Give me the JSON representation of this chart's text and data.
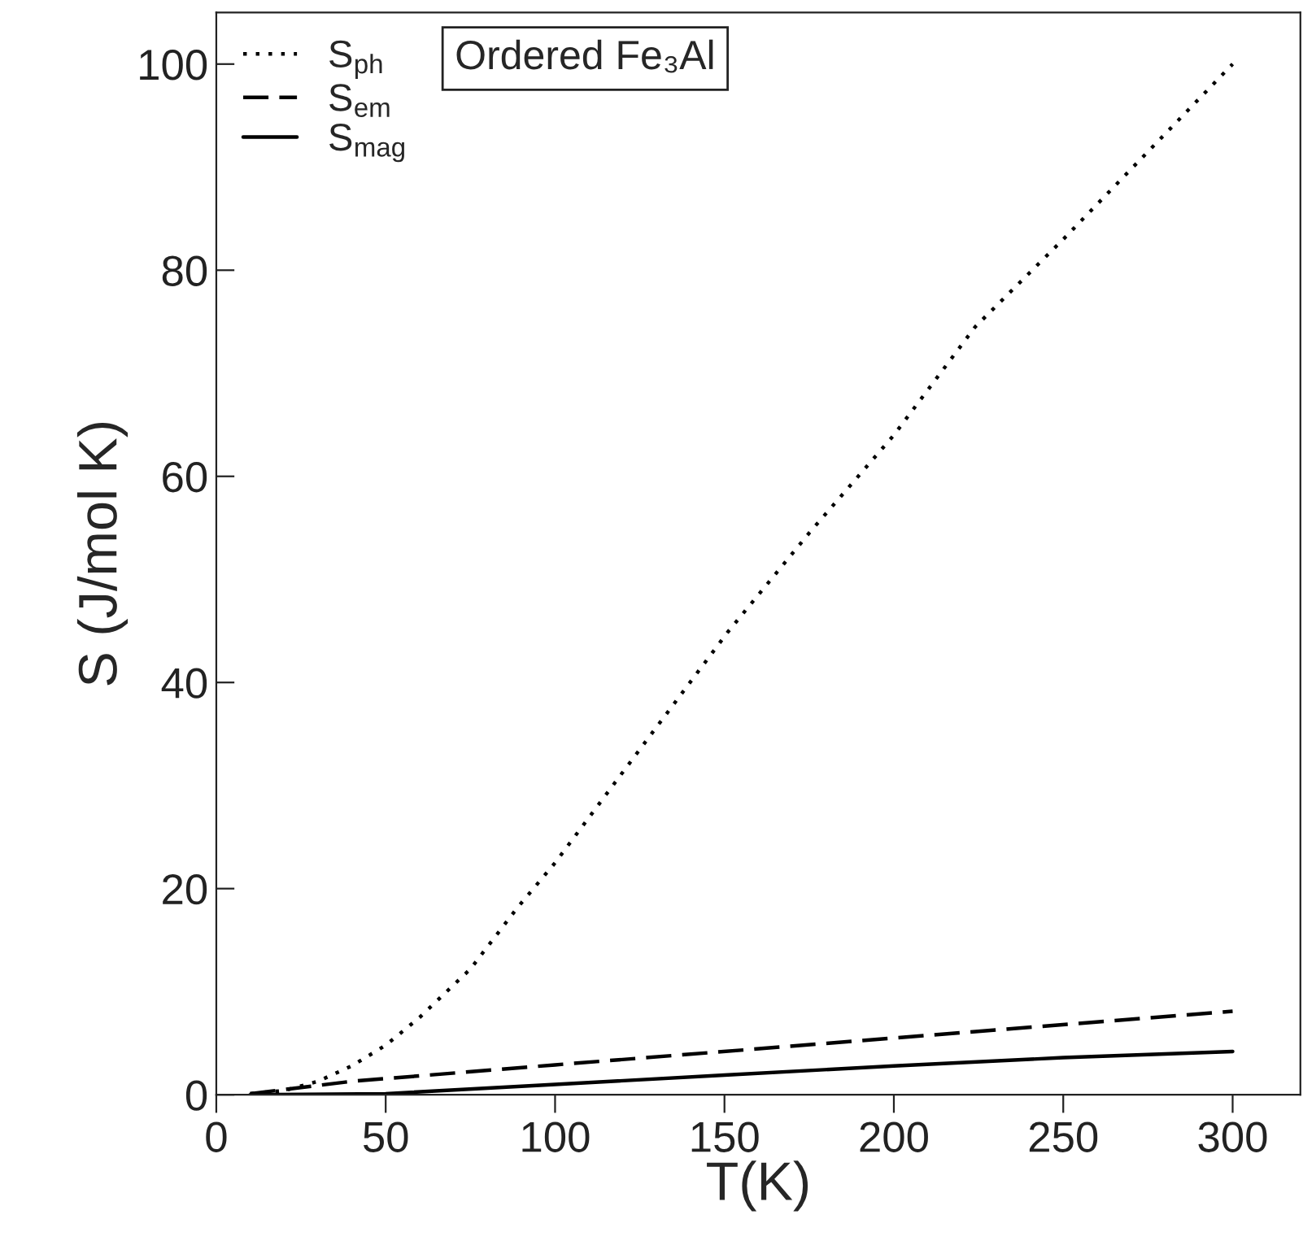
{
  "chart_data": {
    "type": "line",
    "xlabel": "T(K)",
    "ylabel": "S (J/mol K)",
    "annotations": [
      "Ordered Fe₃Al"
    ],
    "xlim": [
      0,
      320
    ],
    "xticks": [
      0,
      50,
      100,
      150,
      200,
      250,
      300
    ],
    "ylim": [
      0,
      105
    ],
    "yticks": [
      0,
      20,
      40,
      60,
      80,
      100
    ],
    "grid": false,
    "legend": "top left",
    "marker": "none",
    "series": [
      {
        "name": "S$_{ph}$",
        "color": "#000000",
        "line_style": "dotted",
        "x": [
          10,
          20,
          30,
          40,
          50,
          60,
          75,
          89,
          100,
          125,
          151,
          175,
          200,
          224,
          250,
          275,
          300
        ],
        "values": [
          0.1,
          0.4,
          1.3,
          2.8,
          4.8,
          7.5,
          12.2,
          18.2,
          22.5,
          33.5,
          44.9,
          54.5,
          64,
          74.5,
          83,
          91.5,
          100
        ]
      },
      {
        "name": "S$_{em}$",
        "color": "#000000",
        "line_style": "dashed",
        "x": [
          10,
          20,
          40,
          100,
          200,
          300
        ],
        "values": [
          0.1,
          0.5,
          1.3,
          2.9,
          5.5,
          8.1
        ]
      },
      {
        "name": "S$_{mag}$",
        "color": "#000000",
        "line_style": "solid",
        "x": [
          10,
          50,
          100,
          150,
          200,
          250,
          300
        ],
        "values": [
          0,
          0.1,
          1.0,
          1.9,
          2.8,
          3.6,
          4.2
        ]
      }
    ]
  }
}
